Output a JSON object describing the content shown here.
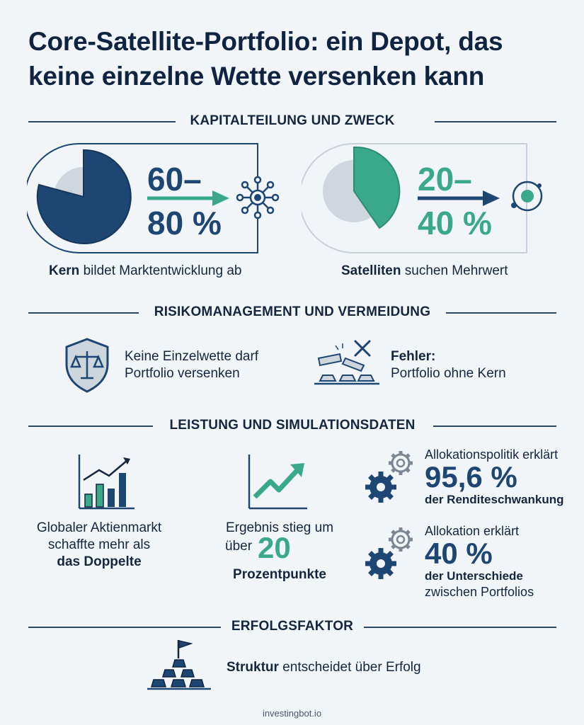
{
  "title": "Core-Satellite-Portfolio: ein Depot, das keine einzelne Wette versenken kann",
  "sections": {
    "allocation": {
      "heading": "KAPITALTEILUNG UND ZWECK",
      "core": {
        "range_top": "60–",
        "range_bottom": "80 %",
        "caption_bold": "Kern",
        "caption_rest": " bildet Marktentwicklung ab",
        "color": "#1d4673",
        "share": 0.7
      },
      "satellite": {
        "range_top": "20–",
        "range_bottom": "40 %",
        "caption_bold": "Satelliten",
        "caption_rest": " suchen Mehrwert",
        "color": "#3aa98a",
        "share": 0.3
      }
    },
    "risk": {
      "heading": "RISIKOMANAGEMENT UND VERMEIDUNG",
      "left_line1": "Keine Einzelwette darf",
      "left_line2": "Portfolio versenken",
      "right_bold": "Fehler:",
      "right_text": "Portfolio ohne Kern"
    },
    "performance": {
      "heading": "LEISTUNG UND SIMULATIONSDATEN",
      "market_line1": "Globaler Aktienmarkt",
      "market_line2": "schaffte mehr als",
      "market_bold": "das Doppelte",
      "result_line1": "Ergebnis stieg um",
      "result_prefix": "über",
      "result_value": "20",
      "result_bold": "Prozentpunkte",
      "policy_label": "Allokationspolitik erklärt",
      "policy_value": "95,6 %",
      "policy_bold": "der Renditeschwankung",
      "alloc_label": "Allokation erklärt",
      "alloc_value": "40 %",
      "alloc_bold": "der Unterschiede",
      "alloc_rest": "zwischen Portfolios"
    },
    "success": {
      "heading": "ERFOLGSFAKTOR",
      "bold": "Struktur",
      "rest": " entscheidet über Erfolg"
    }
  },
  "footer": "investingbot.io"
}
